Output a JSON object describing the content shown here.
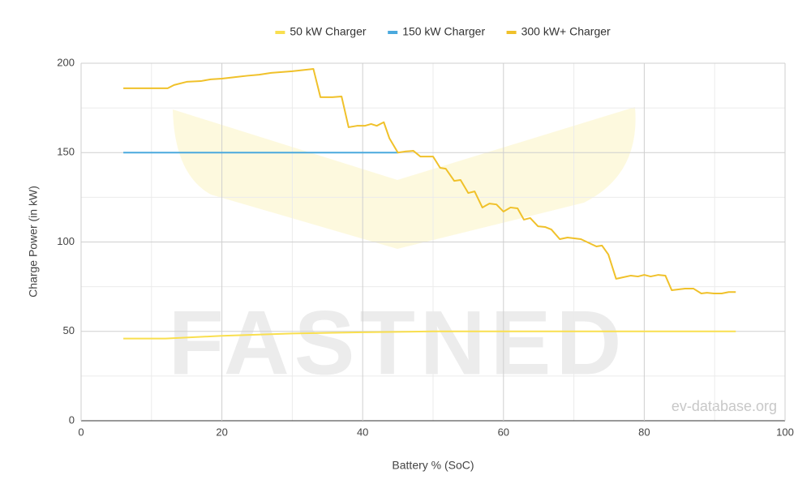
{
  "chart_data": {
    "type": "line",
    "x_label": "Battery % (SoC)",
    "y_label": "Charge Power (in kW)",
    "watermark": "FASTNED",
    "source": "ev-database.org",
    "xlim": [
      0,
      100
    ],
    "xticks": [
      0,
      20,
      40,
      60,
      80,
      100
    ],
    "ylim": [
      0,
      200
    ],
    "yticks": [
      0,
      50,
      100,
      150,
      200
    ],
    "grid": true,
    "legend": "top",
    "series": [
      {
        "name": "50 kW Charger",
        "color": "#f9df4f",
        "x": [
          6,
          12,
          20,
          30,
          40,
          50,
          93
        ],
        "values": [
          46,
          46,
          47.5,
          48.8,
          49.5,
          50,
          50
        ]
      },
      {
        "name": "150 kW Charger",
        "color": "#4aa9dd",
        "x": [
          6,
          45
        ],
        "values": [
          150,
          150
        ]
      },
      {
        "name": "300 kW+ Charger",
        "color": "#f0c12a",
        "x": [
          6,
          12.3,
          13.2,
          15,
          17,
          18.4,
          20,
          22,
          23.6,
          25.3,
          27,
          30,
          33,
          34,
          35.7,
          37,
          38,
          39.2,
          40.3,
          41.2,
          42,
          43,
          43.8,
          45,
          46,
          47.2,
          48.2,
          50,
          51,
          51.8,
          53,
          53.9,
          55,
          55.9,
          57,
          58,
          59,
          60,
          61,
          62,
          62.9,
          63.8,
          64.9,
          65.9,
          66.8,
          68,
          69.1,
          71,
          73.2,
          74,
          74.9,
          76,
          78.1,
          79.1,
          80,
          80.9,
          82,
          83,
          83.9,
          85.8,
          87,
          88.1,
          88.9,
          89.9,
          91,
          92,
          93
        ],
        "values": [
          186,
          186,
          187.8,
          189.6,
          190,
          191,
          191.4,
          192.3,
          193,
          193.6,
          194.6,
          195.5,
          196.8,
          181,
          181,
          181.4,
          164.2,
          165,
          165,
          166,
          165,
          167,
          158,
          150,
          150.6,
          151,
          147.8,
          147.8,
          141.5,
          141,
          134.2,
          134.7,
          127.4,
          128.3,
          119.3,
          121.5,
          121,
          117,
          119.3,
          118.8,
          112.5,
          113.4,
          108.8,
          108.4,
          107,
          101.6,
          102.5,
          101.6,
          97.5,
          98,
          93,
          79.4,
          81.2,
          80.7,
          81.6,
          80.7,
          81.6,
          81.2,
          73,
          73.9,
          73.9,
          71.2,
          71.6,
          71.2,
          71.2,
          72,
          72
        ]
      }
    ]
  }
}
